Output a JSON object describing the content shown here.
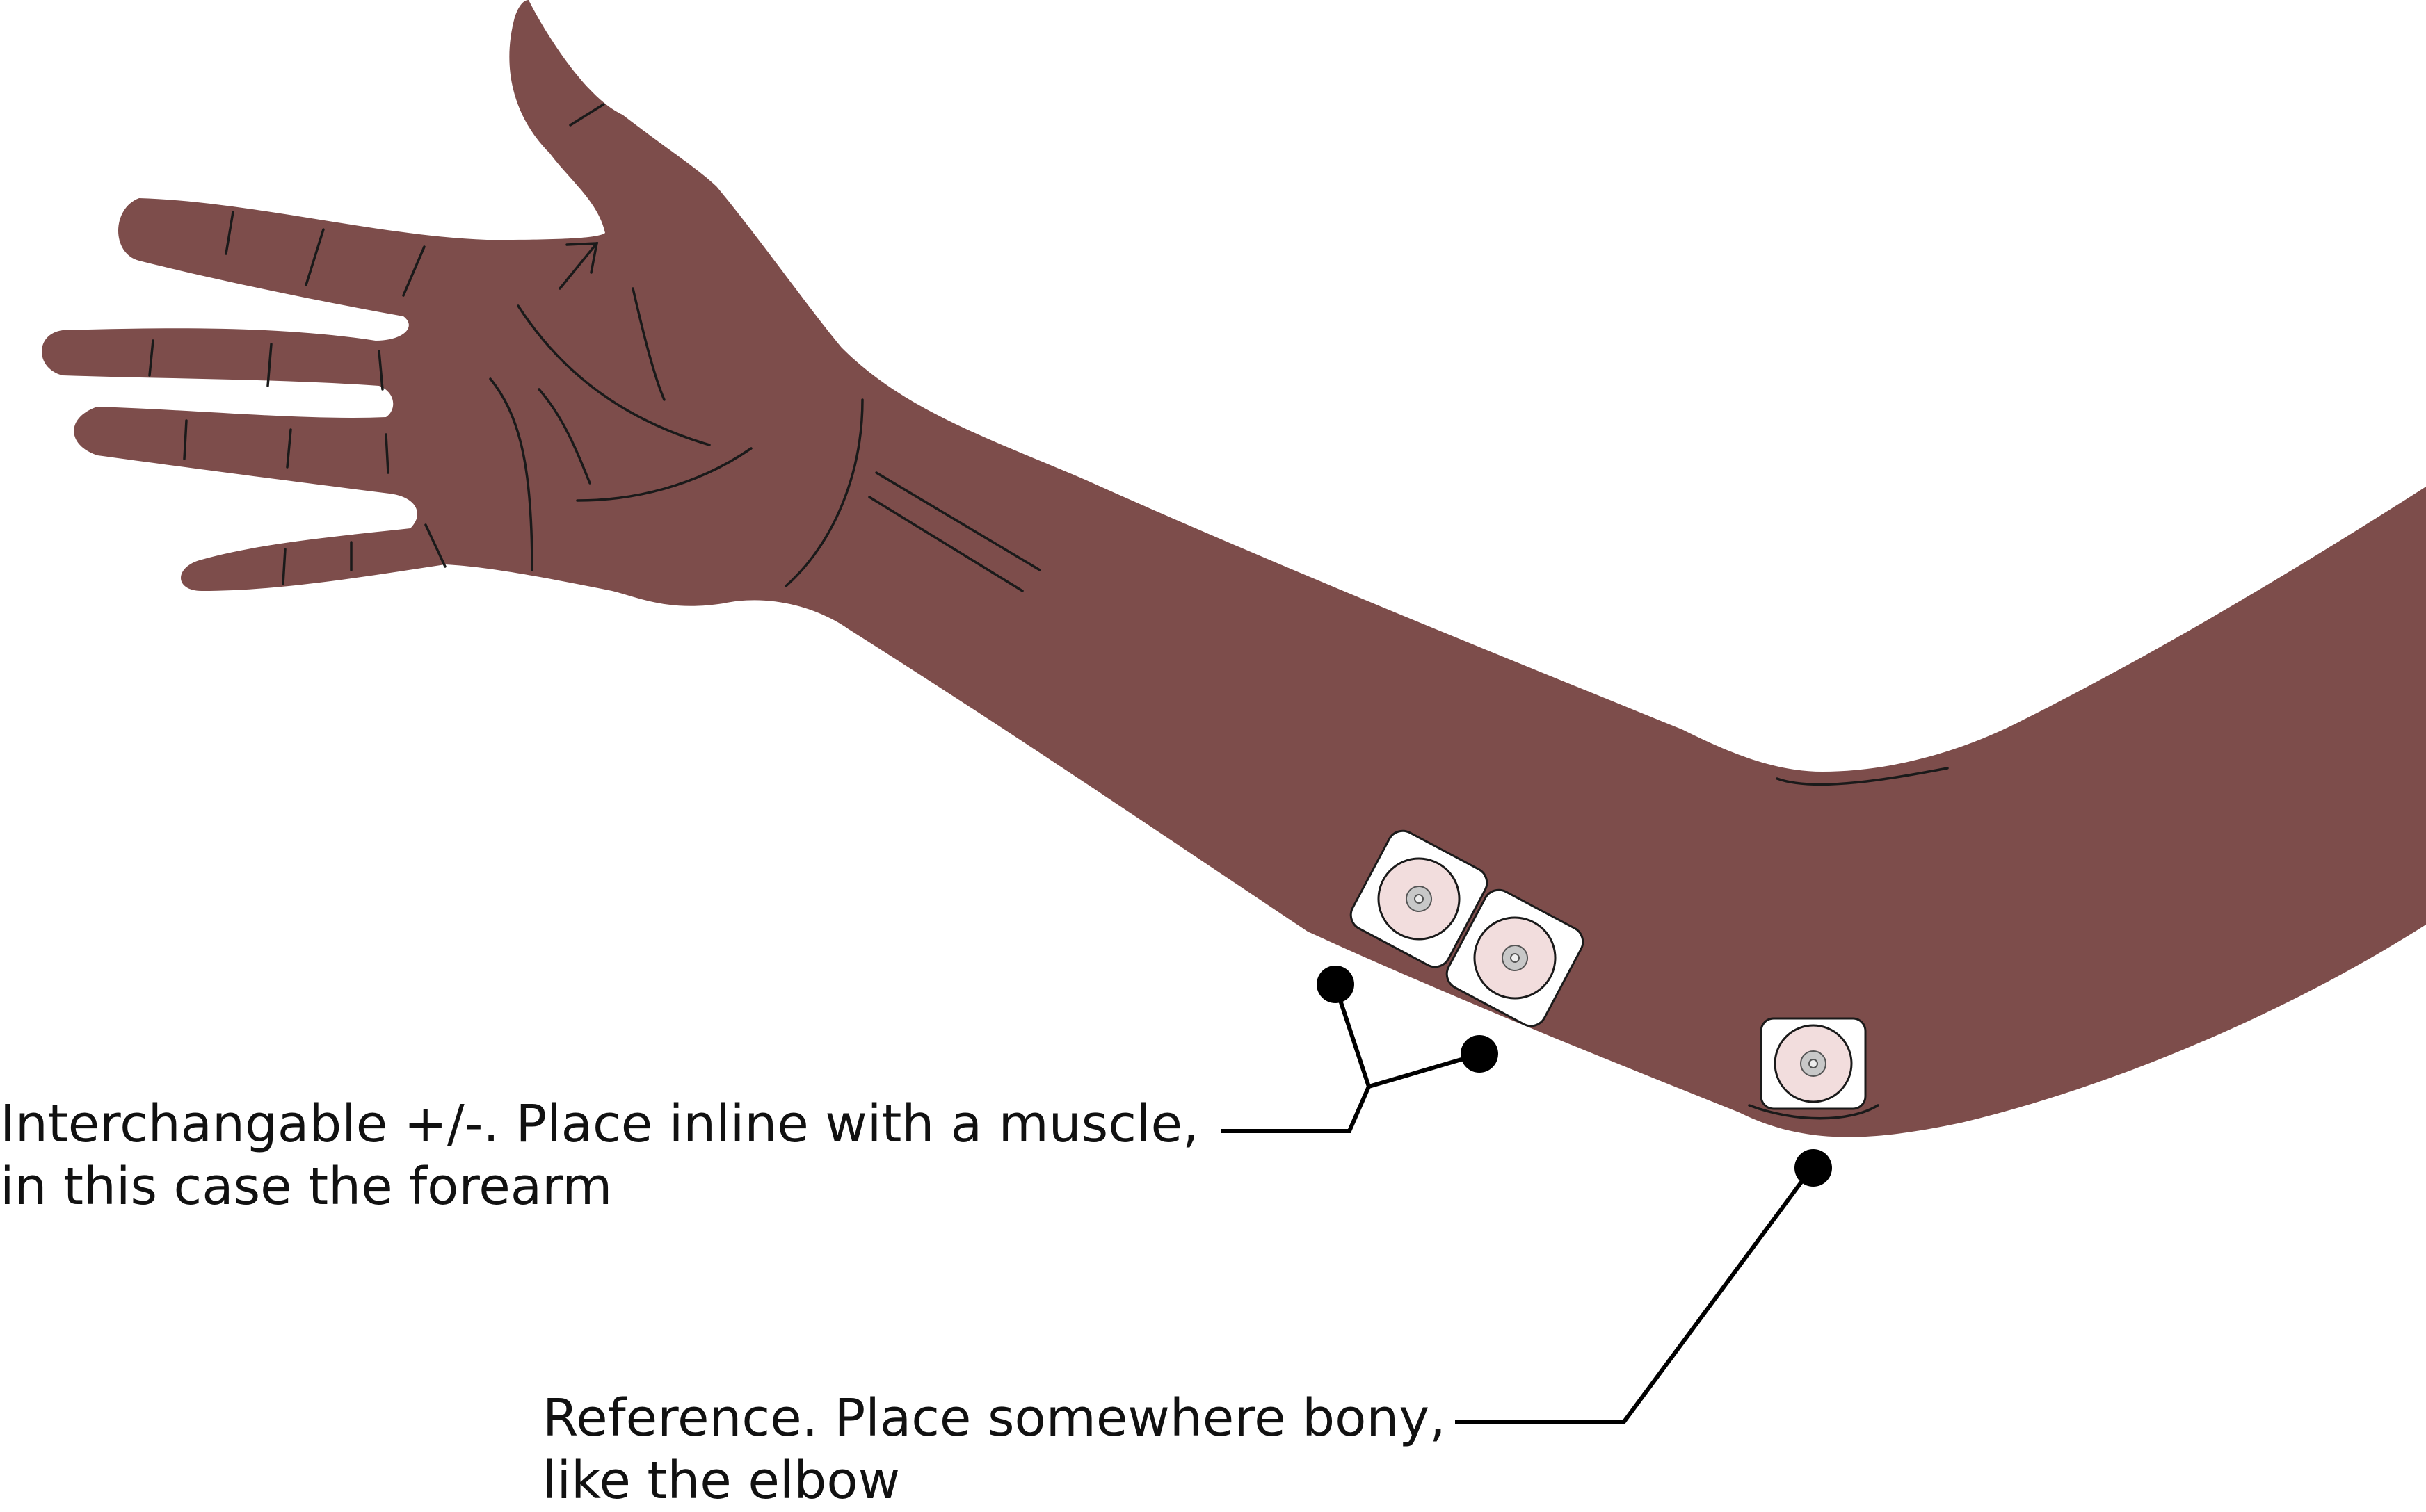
{
  "colors": {
    "skin": "#7d4d4b",
    "skin_line": "#1a1a1a",
    "electrode_backing": "#ffffff",
    "electrode_pad": "#f2dddd",
    "electrode_center": "#c8c8c8",
    "leader": "#000000"
  },
  "labels": {
    "active": {
      "line1": "Interchangable +/-. Place inline with a muscle,",
      "line2": "in this case the forearm"
    },
    "reference": {
      "line1": "Reference. Place somewhere bony,",
      "line2": "like the elbow"
    }
  },
  "electrodes": [
    {
      "role": "active"
    },
    {
      "role": "active"
    },
    {
      "role": "reference"
    }
  ]
}
